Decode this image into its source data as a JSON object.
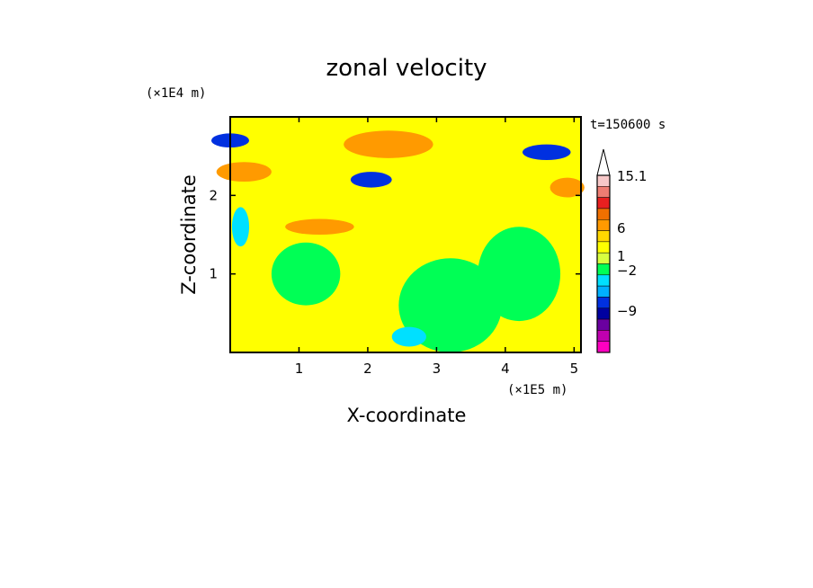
{
  "chart_data": {
    "type": "heatmap",
    "title": "zonal velocity",
    "xlabel": "X-coordinate",
    "ylabel": "Z-coordinate",
    "x_scale_note": "(×1E5 m)",
    "y_scale_note": "(×1E4 m)",
    "time_label": "t=150600 s",
    "xlim": [
      0,
      5.1
    ],
    "ylim": [
      0,
      3.0
    ],
    "x_ticks": [
      "1",
      "2",
      "3",
      "4",
      "5"
    ],
    "x_tick_values": [
      1,
      2,
      3,
      4,
      5
    ],
    "y_ticks": [
      "1",
      "2"
    ],
    "y_tick_values": [
      1,
      2
    ],
    "colorbar": {
      "labels": [
        "15.1",
        "6",
        "1",
        "−2",
        "−9"
      ],
      "colors": [
        "#ffffff",
        "#f7c8c8",
        "#ee7d73",
        "#e82020",
        "#f07000",
        "#ff9a00",
        "#ffd700",
        "#ffff00",
        "#d8ff40",
        "#00ff55",
        "#00e0ff",
        "#00b0ff",
        "#0030e0",
        "#0000a0",
        "#6a00a0",
        "#c000b0",
        "#ff00c0"
      ]
    },
    "field_regions": [
      {
        "x": 0.0,
        "z": 2.7,
        "level": "#0030e0",
        "w": 0.55,
        "h": 0.18
      },
      {
        "x": 4.6,
        "z": 2.55,
        "level": "#0030e0",
        "w": 0.7,
        "h": 0.2
      },
      {
        "x": 2.05,
        "z": 2.2,
        "level": "#0030e0",
        "w": 0.6,
        "h": 0.2
      },
      {
        "x": 2.3,
        "z": 2.65,
        "level": "#ff9a00",
        "w": 1.3,
        "h": 0.35
      },
      {
        "x": 0.2,
        "z": 2.3,
        "level": "#ff9a00",
        "w": 0.8,
        "h": 0.25
      },
      {
        "x": 1.3,
        "z": 1.6,
        "level": "#ff9a00",
        "w": 1.0,
        "h": 0.2
      },
      {
        "x": 4.9,
        "z": 2.1,
        "level": "#ff9a00",
        "w": 0.5,
        "h": 0.25
      },
      {
        "x": 3.2,
        "z": 0.6,
        "level": "#00ff55",
        "w": 1.5,
        "h": 1.2
      },
      {
        "x": 1.1,
        "z": 1.0,
        "level": "#00ff55",
        "w": 1.0,
        "h": 0.8
      },
      {
        "x": 4.2,
        "z": 1.0,
        "level": "#00ff55",
        "w": 1.2,
        "h": 1.2
      },
      {
        "x": 0.15,
        "z": 1.6,
        "level": "#00e0ff",
        "w": 0.25,
        "h": 0.5
      },
      {
        "x": 2.6,
        "z": 0.2,
        "level": "#00e0ff",
        "w": 0.5,
        "h": 0.25
      }
    ]
  }
}
